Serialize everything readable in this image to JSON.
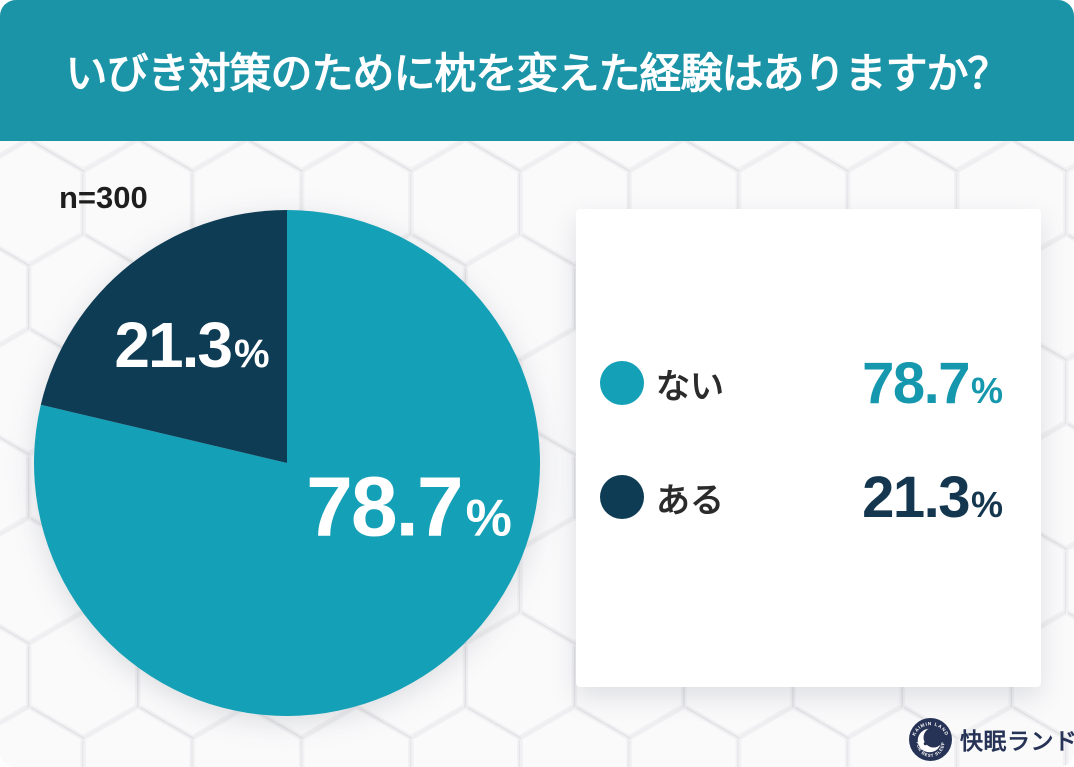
{
  "header": {
    "title": "いびき対策のために枕を変えた経験はありますか？",
    "bg_color": "#1B94A8",
    "text_color": "#ffffff"
  },
  "sample_label": "n=300",
  "chart_data": {
    "type": "pie",
    "title": "いびき対策のために枕を変えた経験はありますか？",
    "sample_label": "n=300",
    "unit": "%",
    "start_angle": "top",
    "direction": "clockwise",
    "legend_position": "right",
    "slices": [
      {
        "label": "ない",
        "value": 78.7,
        "display": "78.7",
        "color": "#14A0B6",
        "value_text_color": "#1598AD"
      },
      {
        "label": "ある",
        "value": 21.3,
        "display": "21.3",
        "color": "#0E3C55",
        "value_text_color": "#14374F"
      }
    ]
  },
  "legend": {
    "bg_color": "#ffffff"
  },
  "brand": {
    "name": "快眠ランド",
    "badge_arc_top": "KAIMIN LAND",
    "badge_arc_bottom": "FOR BEST SLEEP",
    "badge_color": "#273356"
  },
  "background": {
    "base_color": "#efeff1",
    "pattern": "hexagons"
  }
}
